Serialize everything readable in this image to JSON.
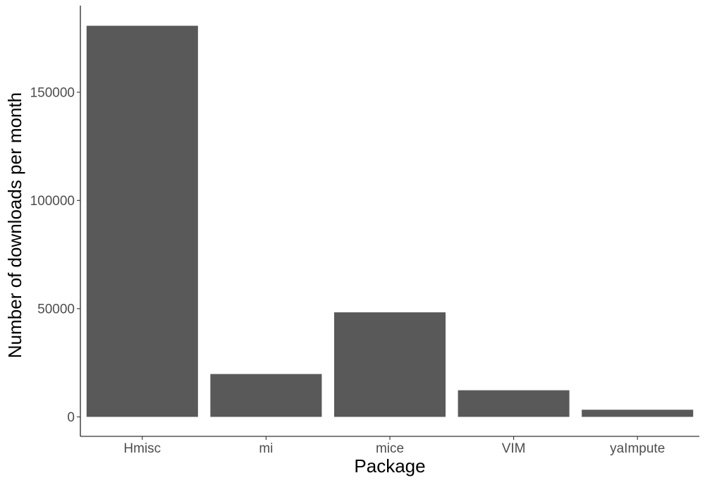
{
  "chart_data": {
    "type": "bar",
    "title": "",
    "xlabel": "Package",
    "ylabel": "Number of downloads per month",
    "categories": [
      "Hmisc",
      "mi",
      "mice",
      "VIM",
      "yaImpute"
    ],
    "values": [
      180700,
      19800,
      48300,
      12300,
      3300
    ],
    "ylim": [
      -9000,
      190000
    ],
    "yticks": [
      0,
      50000,
      100000,
      150000
    ],
    "grid": false,
    "legend": "none",
    "bar_color": "#595959",
    "axis_color": "#000000",
    "tick_label_color": "#4d4d4d",
    "axis_title_color": "#000000"
  }
}
